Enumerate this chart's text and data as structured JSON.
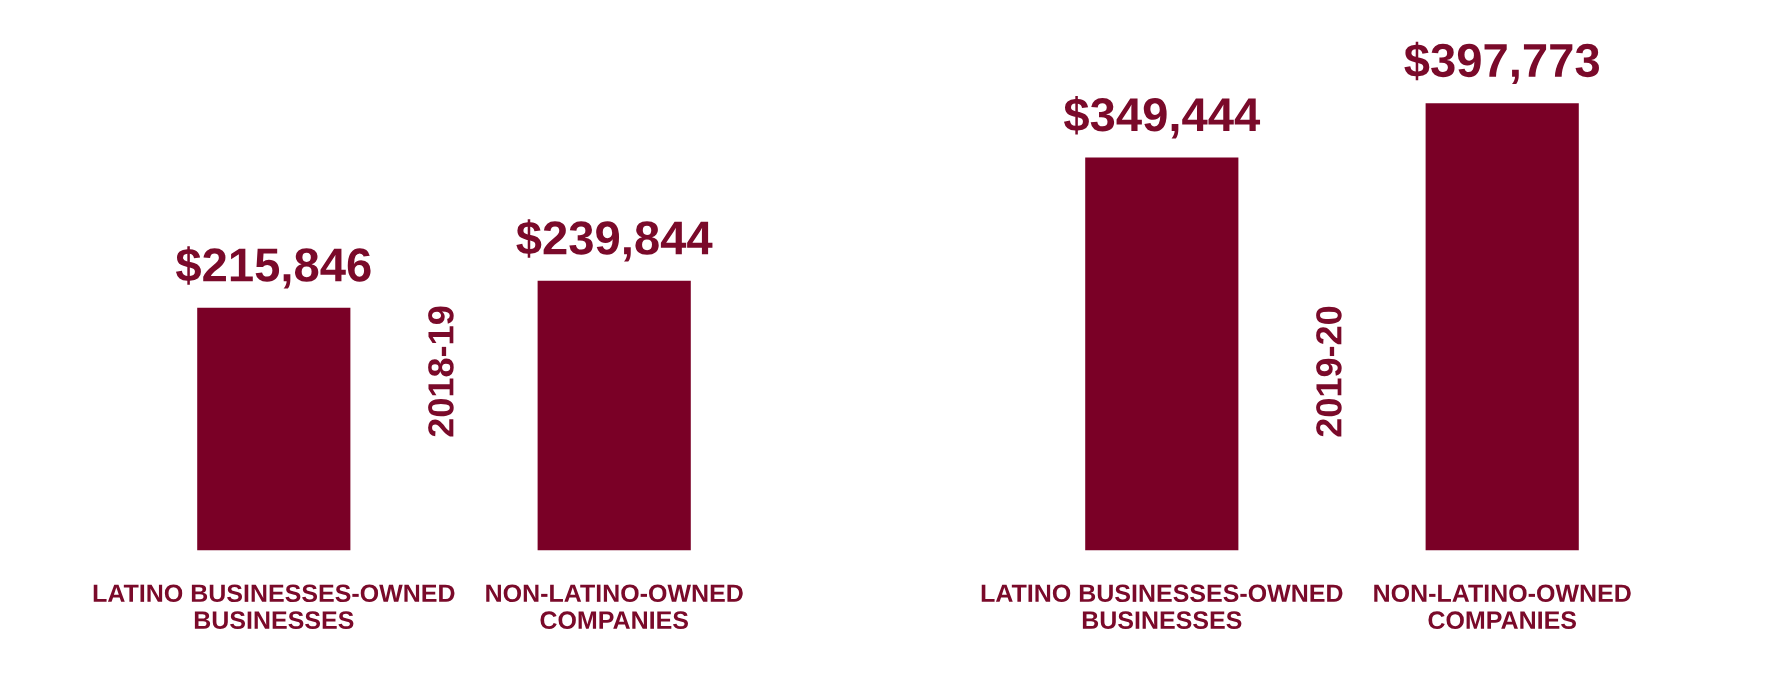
{
  "chart_data": [
    {
      "type": "bar",
      "categories": [
        "LATINO BUSINESSES-OWNED\nBUSINESSES",
        "NON-LATINO-OWNED\nCOMPANIES"
      ],
      "values": [
        215846,
        239844
      ],
      "value_labels": [
        "$215,846",
        "$239,844"
      ],
      "color": "#7a0026",
      "annotations": [
        "2018-19"
      ]
    },
    {
      "type": "bar",
      "categories": [
        "LATINO BUSINESSES-OWNED\nBUSINESSES",
        "NON-LATINO-OWNED\nCOMPANIES"
      ],
      "values": [
        349444,
        397773
      ],
      "value_labels": [
        "$349,444",
        "$397,773"
      ],
      "color": "#7a0026",
      "annotations": [
        "2019-20"
      ]
    }
  ]
}
